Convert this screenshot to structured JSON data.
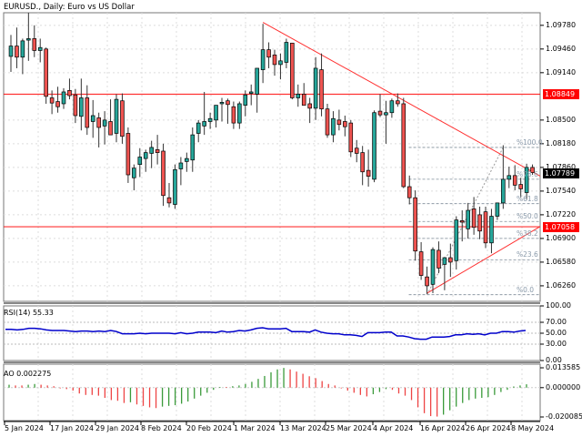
{
  "header": {
    "title": "EURUSD., Daily:  Euro vs US Dollar"
  },
  "colors": {
    "bull": "#26a69a",
    "bear": "#ef5350",
    "wick": "#000000",
    "hline": "#ff0000",
    "trendline": "#ff3030",
    "grid": "#dcdcdc",
    "fib": "#7f8c99",
    "rsi": "#0000cc",
    "ao_up": "#3a9a3a",
    "ao_down": "#ee4444",
    "current_tag": "#000000",
    "level_tag": "#ff0000"
  },
  "price_axis": {
    "labels": [
      "1.09780",
      "1.09460",
      "1.09140",
      "1.08500",
      "1.08180",
      "1.07860",
      "1.07540",
      "1.07220",
      "1.06900",
      "1.06580",
      "1.06260"
    ],
    "level_tag_upper": "1.08849",
    "level_tag_lower": "1.07058",
    "current_price": "1.07789"
  },
  "fib_levels": [
    {
      "label": "%100.0",
      "price": 1.0813
    },
    {
      "label": "%78.6",
      "price": 1.077
    },
    {
      "label": "%61.8",
      "price": 1.0737
    },
    {
      "label": "%50.0",
      "price": 1.0713
    },
    {
      "label": "%38.2",
      "price": 1.069
    },
    {
      "label": "%23.6",
      "price": 1.0661
    },
    {
      "label": "%0.0",
      "price": 1.0614
    }
  ],
  "rsi": {
    "title": "RSI(14) 55.33",
    "axis_labels": [
      "100.00",
      "70.00",
      "50.00",
      "30.00",
      "0.00"
    ]
  },
  "ao": {
    "title": "AO 0.002275",
    "axis_labels": [
      "0.013585",
      "0.000000",
      "-0.020085"
    ]
  },
  "time_axis": {
    "labels": [
      "5 Jan 2024",
      "17 Jan 2024",
      "29 Jan 2024",
      "8 Feb 2024",
      "20 Feb 2024",
      "1 Mar 2024",
      "13 Mar 2024",
      "25 Mar 2024",
      "4 Apr 2024",
      "16 Apr 2024",
      "26 Apr 2024",
      "8 May 2024"
    ]
  },
  "chart_data": {
    "type": "candlestick",
    "title": "EURUSD., Daily: Euro vs US Dollar",
    "symbol": "EURUSD.",
    "timeframe": "Daily",
    "ylim": [
      1.0605,
      1.0995
    ],
    "horizontal_levels": [
      1.08849,
      1.07058
    ],
    "current_price": 1.07789,
    "x_tick_labels": [
      "5 Jan 2024",
      "17 Jan 2024",
      "29 Jan 2024",
      "8 Feb 2024",
      "20 Feb 2024",
      "1 Mar 2024",
      "13 Mar 2024",
      "25 Mar 2024",
      "4 Apr 2024",
      "16 Apr 2024",
      "26 Apr 2024",
      "8 May 2024"
    ],
    "candles": [
      {
        "o": 1.0936,
        "h": 1.0965,
        "l": 1.0915,
        "c": 1.095
      },
      {
        "o": 1.095,
        "h": 1.0975,
        "l": 1.092,
        "c": 1.0935
      },
      {
        "o": 1.0935,
        "h": 1.096,
        "l": 1.0912,
        "c": 1.0957
      },
      {
        "o": 1.0958,
        "h": 1.0995,
        "l": 1.093,
        "c": 1.096
      },
      {
        "o": 1.096,
        "h": 1.0978,
        "l": 1.0935,
        "c": 1.0944
      },
      {
        "o": 1.0944,
        "h": 1.096,
        "l": 1.0928,
        "c": 1.0948
      },
      {
        "o": 1.0946,
        "h": 1.0948,
        "l": 1.0872,
        "c": 1.0882
      },
      {
        "o": 1.088,
        "h": 1.089,
        "l": 1.0858,
        "c": 1.0873
      },
      {
        "o": 1.0875,
        "h": 1.0895,
        "l": 1.086,
        "c": 1.0868
      },
      {
        "o": 1.0872,
        "h": 1.0893,
        "l": 1.0865,
        "c": 1.0888
      },
      {
        "o": 1.089,
        "h": 1.0906,
        "l": 1.0878,
        "c": 1.0883
      },
      {
        "o": 1.0884,
        "h": 1.0892,
        "l": 1.0846,
        "c": 1.0856
      },
      {
        "o": 1.0855,
        "h": 1.0906,
        "l": 1.0836,
        "c": 1.088
      },
      {
        "o": 1.088,
        "h": 1.0897,
        "l": 1.083,
        "c": 1.084
      },
      {
        "o": 1.0848,
        "h": 1.0877,
        "l": 1.0826,
        "c": 1.0856
      },
      {
        "o": 1.0853,
        "h": 1.086,
        "l": 1.0813,
        "c": 1.084
      },
      {
        "o": 1.0842,
        "h": 1.0862,
        "l": 1.0817,
        "c": 1.085
      },
      {
        "o": 1.0848,
        "h": 1.0878,
        "l": 1.0836,
        "c": 1.083
      },
      {
        "o": 1.0832,
        "h": 1.0885,
        "l": 1.082,
        "c": 1.0878
      },
      {
        "o": 1.0876,
        "h": 1.0886,
        "l": 1.0818,
        "c": 1.0828
      },
      {
        "o": 1.0832,
        "h": 1.084,
        "l": 1.0765,
        "c": 1.0776
      },
      {
        "o": 1.0772,
        "h": 1.079,
        "l": 1.0755,
        "c": 1.0785
      },
      {
        "o": 1.079,
        "h": 1.0812,
        "l": 1.0773,
        "c": 1.08
      },
      {
        "o": 1.0798,
        "h": 1.081,
        "l": 1.078,
        "c": 1.0806
      },
      {
        "o": 1.0805,
        "h": 1.0822,
        "l": 1.0785,
        "c": 1.0813
      },
      {
        "o": 1.081,
        "h": 1.083,
        "l": 1.079,
        "c": 1.0806
      },
      {
        "o": 1.0808,
        "h": 1.0818,
        "l": 1.0734,
        "c": 1.0748
      },
      {
        "o": 1.0745,
        "h": 1.0765,
        "l": 1.0732,
        "c": 1.0738
      },
      {
        "o": 1.0736,
        "h": 1.079,
        "l": 1.073,
        "c": 1.0783
      },
      {
        "o": 1.0784,
        "h": 1.08,
        "l": 1.0762,
        "c": 1.0792
      },
      {
        "o": 1.0794,
        "h": 1.0806,
        "l": 1.078,
        "c": 1.0798
      },
      {
        "o": 1.0796,
        "h": 1.084,
        "l": 1.078,
        "c": 1.083
      },
      {
        "o": 1.0832,
        "h": 1.085,
        "l": 1.082,
        "c": 1.0846
      },
      {
        "o": 1.0842,
        "h": 1.0888,
        "l": 1.083,
        "c": 1.0848
      },
      {
        "o": 1.0848,
        "h": 1.086,
        "l": 1.0838,
        "c": 1.0852
      },
      {
        "o": 1.085,
        "h": 1.0868,
        "l": 1.084,
        "c": 1.087
      },
      {
        "o": 1.0872,
        "h": 1.088,
        "l": 1.0848,
        "c": 1.0874
      },
      {
        "o": 1.0876,
        "h": 1.0879,
        "l": 1.0845,
        "c": 1.0871
      },
      {
        "o": 1.0868,
        "h": 1.0875,
        "l": 1.0838,
        "c": 1.0846
      },
      {
        "o": 1.0846,
        "h": 1.0875,
        "l": 1.0838,
        "c": 1.0872
      },
      {
        "o": 1.087,
        "h": 1.089,
        "l": 1.0855,
        "c": 1.0884
      },
      {
        "o": 1.0886,
        "h": 1.0898,
        "l": 1.087,
        "c": 1.0888
      },
      {
        "o": 1.0885,
        "h": 1.092,
        "l": 1.086,
        "c": 1.092
      },
      {
        "o": 1.0918,
        "h": 1.098,
        "l": 1.09,
        "c": 1.0945
      },
      {
        "o": 1.0945,
        "h": 1.0955,
        "l": 1.092,
        "c": 1.0935
      },
      {
        "o": 1.0938,
        "h": 1.0945,
        "l": 1.091,
        "c": 1.0925
      },
      {
        "o": 1.0925,
        "h": 1.094,
        "l": 1.0905,
        "c": 1.093
      },
      {
        "o": 1.0928,
        "h": 1.096,
        "l": 1.092,
        "c": 1.0955
      },
      {
        "o": 1.0954,
        "h": 1.095,
        "l": 1.0878,
        "c": 1.088
      },
      {
        "o": 1.088,
        "h": 1.0898,
        "l": 1.0868,
        "c": 1.0885
      },
      {
        "o": 1.0885,
        "h": 1.09,
        "l": 1.087,
        "c": 1.087
      },
      {
        "o": 1.0872,
        "h": 1.088,
        "l": 1.0846,
        "c": 1.0866
      },
      {
        "o": 1.0866,
        "h": 1.0935,
        "l": 1.085,
        "c": 1.092
      },
      {
        "o": 1.0918,
        "h": 1.094,
        "l": 1.0855,
        "c": 1.0865
      },
      {
        "o": 1.0865,
        "h": 1.0872,
        "l": 1.0826,
        "c": 1.083
      },
      {
        "o": 1.083,
        "h": 1.0862,
        "l": 1.082,
        "c": 1.0852
      },
      {
        "o": 1.085,
        "h": 1.0864,
        "l": 1.0836,
        "c": 1.0844
      },
      {
        "o": 1.0848,
        "h": 1.0856,
        "l": 1.0828,
        "c": 1.0841
      },
      {
        "o": 1.0846,
        "h": 1.085,
        "l": 1.08,
        "c": 1.0807
      },
      {
        "o": 1.0812,
        "h": 1.0823,
        "l": 1.0793,
        "c": 1.0805
      },
      {
        "o": 1.0806,
        "h": 1.0815,
        "l": 1.0762,
        "c": 1.078
      },
      {
        "o": 1.0782,
        "h": 1.081,
        "l": 1.076,
        "c": 1.0774
      },
      {
        "o": 1.077,
        "h": 1.0863,
        "l": 1.0766,
        "c": 1.086
      },
      {
        "o": 1.0862,
        "h": 1.0885,
        "l": 1.0854,
        "c": 1.0857
      },
      {
        "o": 1.0857,
        "h": 1.0876,
        "l": 1.0818,
        "c": 1.086
      },
      {
        "o": 1.086,
        "h": 1.0879,
        "l": 1.0853,
        "c": 1.0876
      },
      {
        "o": 1.0876,
        "h": 1.0886,
        "l": 1.0868,
        "c": 1.0872
      },
      {
        "o": 1.0872,
        "h": 1.088,
        "l": 1.0758,
        "c": 1.076
      },
      {
        "o": 1.076,
        "h": 1.0775,
        "l": 1.0736,
        "c": 1.0745
      },
      {
        "o": 1.0745,
        "h": 1.0755,
        "l": 1.066,
        "c": 1.0673
      },
      {
        "o": 1.0672,
        "h": 1.0685,
        "l": 1.0634,
        "c": 1.064
      },
      {
        "o": 1.0638,
        "h": 1.0652,
        "l": 1.0615,
        "c": 1.0626
      },
      {
        "o": 1.0628,
        "h": 1.0678,
        "l": 1.0616,
        "c": 1.0675
      },
      {
        "o": 1.0674,
        "h": 1.0686,
        "l": 1.0643,
        "c": 1.065
      },
      {
        "o": 1.0655,
        "h": 1.0665,
        "l": 1.062,
        "c": 1.0664
      },
      {
        "o": 1.0664,
        "h": 1.0683,
        "l": 1.0638,
        "c": 1.0658
      },
      {
        "o": 1.066,
        "h": 1.072,
        "l": 1.0648,
        "c": 1.0715
      },
      {
        "o": 1.0714,
        "h": 1.0728,
        "l": 1.0686,
        "c": 1.0712
      },
      {
        "o": 1.0703,
        "h": 1.0738,
        "l": 1.069,
        "c": 1.0728
      },
      {
        "o": 1.073,
        "h": 1.0746,
        "l": 1.0695,
        "c": 1.0705
      },
      {
        "o": 1.0722,
        "h": 1.0733,
        "l": 1.0689,
        "c": 1.07
      },
      {
        "o": 1.0726,
        "h": 1.0733,
        "l": 1.0677,
        "c": 1.0684
      },
      {
        "o": 1.0684,
        "h": 1.073,
        "l": 1.067,
        "c": 1.072
      },
      {
        "o": 1.072,
        "h": 1.0735,
        "l": 1.0715,
        "c": 1.0738
      },
      {
        "o": 1.0738,
        "h": 1.0816,
        "l": 1.073,
        "c": 1.077
      },
      {
        "o": 1.077,
        "h": 1.0787,
        "l": 1.0758,
        "c": 1.0775
      },
      {
        "o": 1.0775,
        "h": 1.0789,
        "l": 1.0755,
        "c": 1.0762
      },
      {
        "o": 1.0763,
        "h": 1.0772,
        "l": 1.0745,
        "c": 1.0757
      },
      {
        "o": 1.0752,
        "h": 1.0791,
        "l": 1.0742,
        "c": 1.0786
      },
      {
        "o": 1.0786,
        "h": 1.079,
        "l": 1.0776,
        "c": 1.0779
      }
    ],
    "trendlines": [
      {
        "from": {
          "index": 43,
          "price": 1.0982
        },
        "to": {
          "index": 89,
          "price": 1.078
        },
        "label": "descending resistance"
      },
      {
        "from": {
          "index": 71,
          "price": 1.0616
        },
        "to": {
          "index": 89,
          "price": 1.07
        },
        "label": "ascending support"
      }
    ],
    "fibonacci": {
      "from_price": 1.0614,
      "to_price": 1.0813,
      "levels": [
        {
          "pct": "100.0",
          "price": 1.0813
        },
        {
          "pct": "78.6",
          "price": 1.077
        },
        {
          "pct": "61.8",
          "price": 1.0737
        },
        {
          "pct": "50.0",
          "price": 1.0713
        },
        {
          "pct": "38.2",
          "price": 1.069
        },
        {
          "pct": "23.6",
          "price": 1.0661
        },
        {
          "pct": "0.0",
          "price": 1.0614
        }
      ]
    },
    "indicators": [
      {
        "name": "RSI(14)",
        "current": 55.33,
        "levels": [
          70,
          50,
          30
        ],
        "ylim": [
          0,
          100
        ],
        "values": [
          57,
          57,
          56,
          57,
          59,
          59,
          58,
          56,
          55,
          55,
          55,
          54,
          53,
          54,
          54,
          53,
          54,
          53,
          55,
          53,
          49,
          49,
          49,
          50,
          49,
          50,
          50,
          50,
          50,
          49,
          51,
          49,
          50,
          52,
          52,
          52,
          51,
          54,
          52,
          53,
          55,
          54,
          56,
          59,
          60,
          58,
          58,
          58,
          59,
          53,
          53,
          53,
          52,
          56,
          52,
          50,
          49,
          49,
          47,
          47,
          46,
          44,
          51,
          51,
          51,
          52,
          52,
          45,
          45,
          43,
          40,
          39,
          39,
          43,
          43,
          43,
          44,
          47,
          47,
          49,
          48,
          49,
          47,
          50,
          50,
          53,
          53,
          52,
          54,
          55
        ]
      },
      {
        "name": "AO",
        "current": 0.002275,
        "ylim": [
          -0.020085,
          0.013585
        ],
        "values": [
          0.002,
          0.0015,
          0.0015,
          0.002,
          0.0025,
          0.002,
          0.0015,
          0.001,
          -0.0005,
          -0.001,
          -0.002,
          -0.004,
          -0.005,
          -0.005,
          -0.0055,
          -0.007,
          -0.0085,
          -0.009,
          -0.0105,
          -0.01,
          -0.0115,
          -0.0125,
          -0.0135,
          -0.014,
          -0.013,
          -0.0125,
          -0.012,
          -0.011,
          -0.0095,
          -0.0075,
          -0.0055,
          -0.0035,
          -0.0015,
          0.0005,
          0.0005,
          0.001,
          0.0015,
          0.0025,
          0.004,
          0.006,
          0.008,
          0.0105,
          0.0125,
          0.0135,
          0.0125,
          0.011,
          0.0095,
          0.0078,
          0.0065,
          0.0045,
          0.0025,
          0.0015,
          -0.0005,
          -0.002,
          -0.0035,
          -0.005,
          -0.006,
          -0.0045,
          -0.003,
          -0.001,
          -0.0015,
          -0.004,
          -0.0055,
          -0.0085,
          -0.0135,
          -0.0175,
          -0.0195,
          -0.0198,
          -0.0185,
          -0.0155,
          -0.013,
          -0.0105,
          -0.0085,
          -0.0075,
          -0.007,
          -0.0065,
          -0.005,
          -0.003,
          -0.0015,
          0.0008,
          0.0015,
          0.0023
        ]
      }
    ]
  }
}
